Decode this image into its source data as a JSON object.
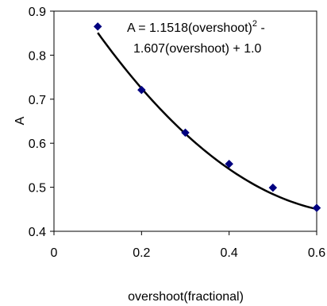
{
  "chart_data": {
    "type": "scatter",
    "xlabel": "overshoot(fractional)",
    "ylabel": "A",
    "xlim": [
      0,
      0.6
    ],
    "ylim": [
      0.4,
      0.9
    ],
    "xticks": [
      0,
      0.2,
      0.4,
      0.6
    ],
    "xtick_labels": [
      "0",
      "0.2",
      "0.4",
      "0.6"
    ],
    "yticks": [
      0.4,
      0.5,
      0.6,
      0.7,
      0.8,
      0.9
    ],
    "ytick_labels": [
      "0.4",
      "0.5",
      "0.6",
      "0.7",
      "0.8",
      "0.9"
    ],
    "grid": false,
    "points": [
      {
        "x": 0.1,
        "y": 0.865
      },
      {
        "x": 0.2,
        "y": 0.721
      },
      {
        "x": 0.3,
        "y": 0.624
      },
      {
        "x": 0.4,
        "y": 0.553
      },
      {
        "x": 0.5,
        "y": 0.499
      },
      {
        "x": 0.6,
        "y": 0.453
      }
    ],
    "trendline": {
      "type": "polynomial",
      "coefficients": [
        1.1518,
        -1.607,
        1.0
      ],
      "x_range": [
        0.1,
        0.6
      ]
    },
    "marker_color": "#000080",
    "line_color": "#000000",
    "annotation": {
      "line1_prefix": "A = 1.1518(overshoot)",
      "line1_sup": "2",
      "line1_suffix": " -",
      "line2": "1.607(overshoot) + 1.0"
    }
  }
}
